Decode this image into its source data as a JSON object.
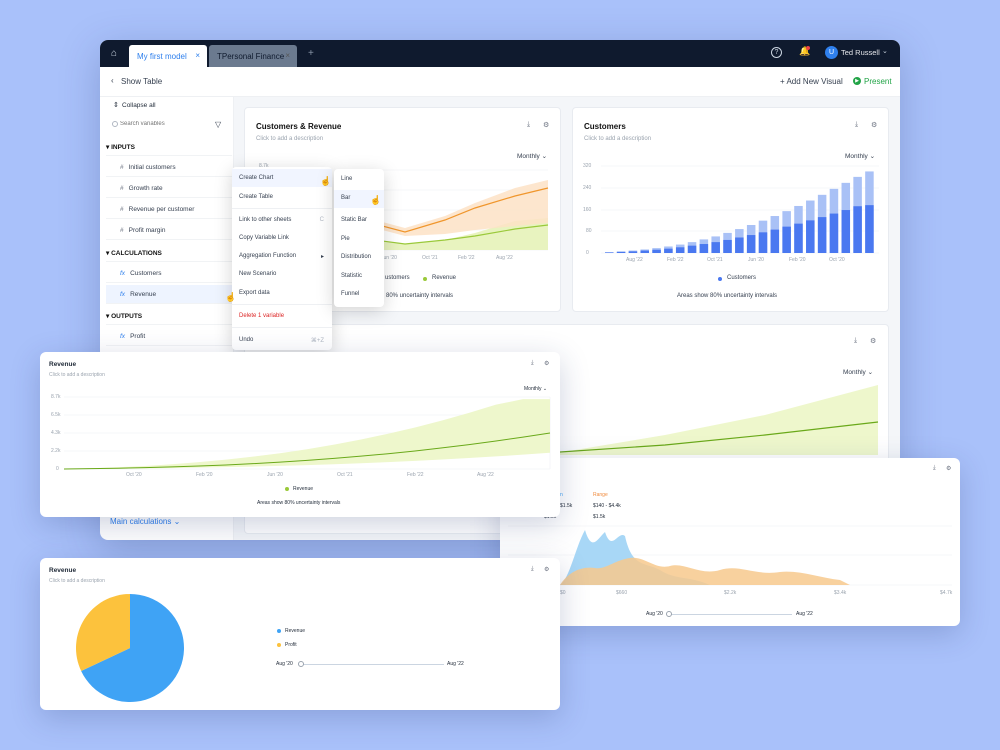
{
  "app": {
    "tabs": [
      {
        "label": "My first model",
        "close": "×"
      },
      {
        "label": "TPersonal Finance",
        "close": "×"
      }
    ],
    "new_tab": "+",
    "user": {
      "initial": "U",
      "name": "Ted Russell"
    },
    "show_table": "Show Table",
    "add_visual": "+ Add New Visual",
    "present": "Present"
  },
  "sidebar": {
    "collapse": "Collapse all",
    "search_placeholder": "Search variables",
    "sections": [
      {
        "title": "INPUTS",
        "items": [
          {
            "glyph": "#",
            "label": "Initial customers"
          },
          {
            "glyph": "#",
            "label": "Growth rate"
          },
          {
            "glyph": "#",
            "label": "Revenue per customer"
          },
          {
            "glyph": "#",
            "label": "Profit margin"
          }
        ]
      },
      {
        "title": "CALCULATIONS",
        "items": [
          {
            "glyph": "fx",
            "label": "Customers"
          },
          {
            "glyph": "fx",
            "label": "Revenue"
          }
        ]
      },
      {
        "title": "OUTPUTS",
        "items": [
          {
            "glyph": "fx",
            "label": "Profit"
          }
        ]
      }
    ],
    "main_calc": "Main calculations"
  },
  "context_menu": {
    "items": [
      "Create Chart",
      "Create Table",
      "Link to other sheets",
      "Copy Variable Link",
      "Aggregation Function",
      "New Scenario",
      "Export data",
      "Delete 1 variable",
      "Undo"
    ],
    "shortcut_link": "C",
    "shortcut_undo": "⌘+Z",
    "submenu": [
      "Line",
      "Bar",
      "Static Bar",
      "Pie",
      "Distribution",
      "Statistic",
      "Funnel"
    ]
  },
  "panels": {
    "customers_revenue": {
      "title": "Customers & Revenue",
      "desc": "Click to add a description",
      "granularity": "Monthly",
      "ytop": "8.7k",
      "xticks": [
        "Jun '20",
        "Oct '21",
        "Feb '22",
        "Aug '22"
      ],
      "legend": [
        "ustomers",
        "Revenue"
      ],
      "note": "80% uncertainty intervals"
    },
    "customers": {
      "title": "Customers",
      "desc": "Click to add a description",
      "granularity": "Monthly",
      "yticks": [
        "320",
        "240",
        "160",
        "80",
        "0"
      ],
      "xticks": [
        "Aug '22",
        "Feb '22",
        "Oct '21",
        "Jun '20",
        "Feb '20",
        "Oct '20"
      ],
      "legend": "Customers",
      "note": "Areas show 80% uncertainty intervals"
    },
    "bottom": {
      "granularity": "Monthly"
    }
  },
  "revenue_line": {
    "title": "Revenue",
    "desc": "Click to add a description",
    "granularity": "Monthly",
    "yticks": [
      "8.7k",
      "6.5k",
      "4.3k",
      "2.2k",
      "0"
    ],
    "xticks": [
      "Oct '20",
      "Feb '20",
      "Jun '20",
      "Oct '21",
      "Feb '22",
      "Aug '22"
    ],
    "legend": "Revenue",
    "note": "Areas show 80% uncertainty intervals"
  },
  "distribution": {
    "col1_label": "n",
    "col1_v1": "$1.5k",
    "col1_v2": "$1.5k",
    "range_label": "Range",
    "range_v1": "$140 - $4.4k",
    "range_v2": "$1.5k",
    "xticks": [
      "$0",
      "$660",
      "$2.2k",
      "$3.4k",
      "$4.7k"
    ],
    "slider_start": "Aug '20",
    "slider_end": "Aug '22",
    "colors": {
      "a": "#9fd3f5",
      "b": "#f7c98d"
    }
  },
  "revenue_pie": {
    "title": "Revenue",
    "desc": "Click to add a description",
    "legend": [
      "Revenue",
      "Profit"
    ],
    "slider_start": "Aug '20",
    "slider_end": "Aug '22",
    "colors": {
      "revenue": "#3fa3f5",
      "profit": "#fcc23d"
    }
  },
  "chart_data": [
    {
      "type": "bar",
      "title": "Customers",
      "ylim": [
        0,
        320
      ],
      "series": [
        {
          "name": "Customers",
          "values": [
            2,
            4,
            6,
            9,
            12,
            16,
            21,
            27,
            33,
            40,
            48,
            57,
            66,
            76,
            86,
            97,
            108,
            120,
            132,
            145,
            158,
            172,
            176
          ]
        },
        {
          "name": "Range upper",
          "values": [
            3,
            6,
            9,
            13,
            18,
            24,
            31,
            40,
            50,
            61,
            74,
            88,
            103,
            119,
            136,
            154,
            173,
            193,
            214,
            236,
            258,
            280,
            300
          ]
        }
      ]
    },
    {
      "type": "area",
      "title": "Revenue",
      "ylim": [
        0,
        8700
      ],
      "series": [
        {
          "name": "Revenue",
          "values": [
            0,
            40,
            90,
            160,
            250,
            360,
            490,
            650,
            830,
            1040,
            1280,
            1550,
            1850,
            2180,
            2550,
            2950,
            3380,
            3850,
            4350
          ]
        }
      ]
    },
    {
      "type": "pie",
      "title": "Revenue",
      "slices": [
        {
          "name": "Revenue",
          "value": 68
        },
        {
          "name": "Profit",
          "value": 32
        }
      ]
    }
  ]
}
